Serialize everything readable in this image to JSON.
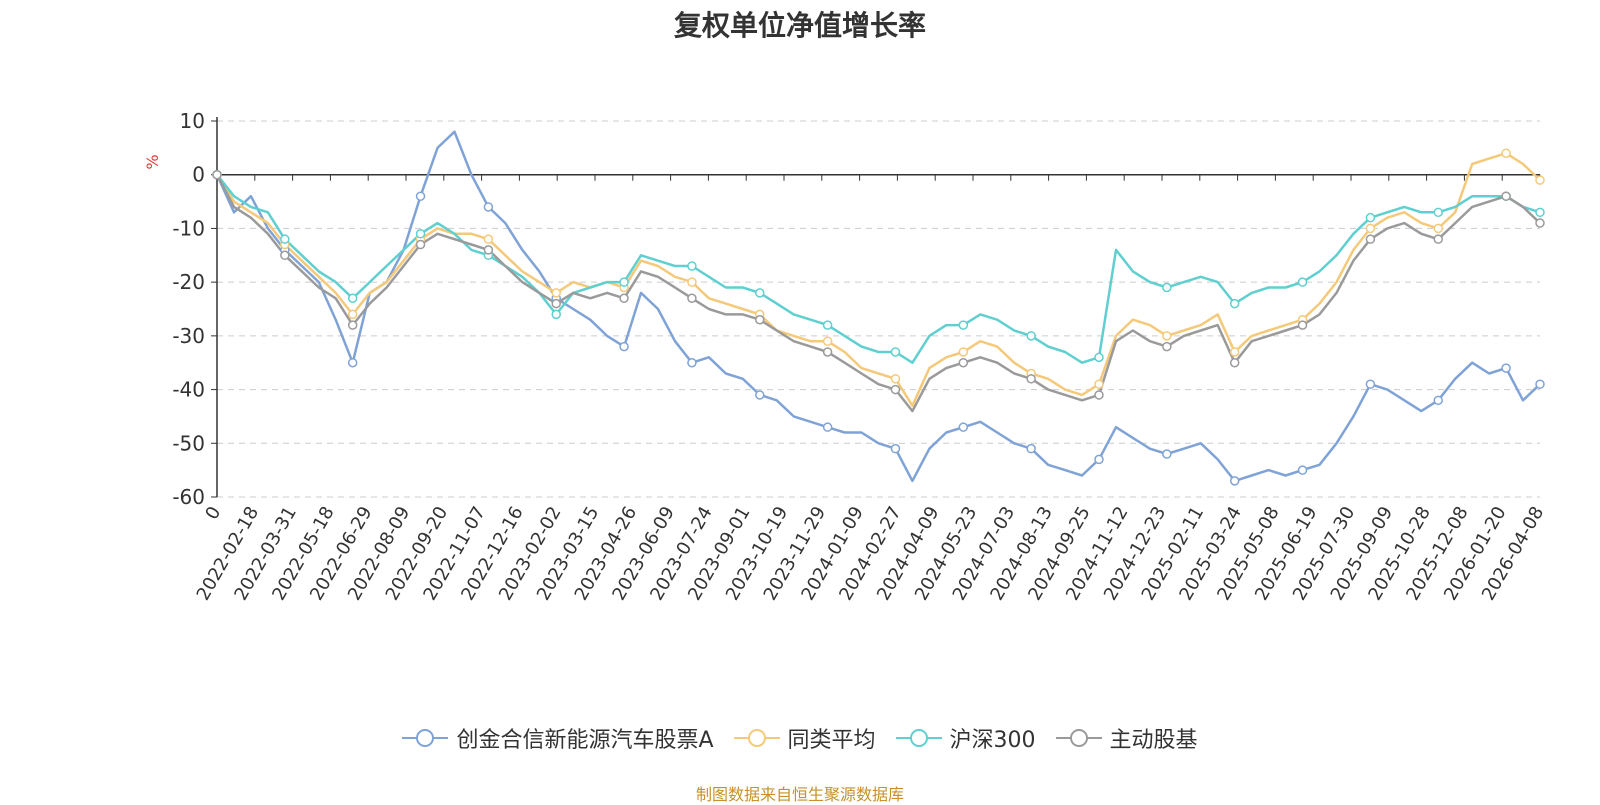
{
  "chart_data": {
    "type": "line",
    "title": "复权单位净值增长率",
    "ylabel": "%",
    "xlabel": "",
    "ylim": [
      -60,
      10
    ],
    "yticks": [
      10,
      0,
      -10,
      -20,
      -30,
      -40,
      -50,
      -60
    ],
    "grid": true,
    "legend_position": "bottom-center",
    "x_labels": [
      "0",
      "2022-02-18",
      "2022-03-31",
      "2022-05-18",
      "2022-06-29",
      "2022-08-09",
      "2022-09-20",
      "2022-11-07",
      "2022-12-16",
      "2023-02-02",
      "2023-03-15",
      "2023-04-26",
      "2023-06-09",
      "2023-07-24",
      "2023-09-01",
      "2023-10-19",
      "2023-11-29",
      "2024-01-09",
      "2024-02-27",
      "2024-04-09",
      "2024-05-23",
      "2024-07-03",
      "2024-08-13",
      "2024-09-25",
      "2024-11-12",
      "2024-12-23",
      "2025-02-11",
      "2025-03-24",
      "2025-05-08",
      "2025-06-19",
      "2025-07-30",
      "2025-09-09",
      "2025-10-28",
      "2025-12-08",
      "2026-01-20",
      "2026-04-08"
    ],
    "series": [
      {
        "name": "创金合信新能源汽车股票A",
        "color": "#7fa3d6",
        "values": [
          0,
          -7,
          -4,
          -10,
          -14,
          -17,
          -20,
          -27,
          -35,
          -22,
          -20,
          -14,
          -4,
          5,
          8,
          0,
          -6,
          -9,
          -14,
          -18,
          -23,
          -25,
          -27,
          -30,
          -32,
          -22,
          -25,
          -31,
          -35,
          -34,
          -37,
          -38,
          -41,
          -42,
          -45,
          -46,
          -47,
          -48,
          -48,
          -50,
          -51,
          -57,
          -51,
          -48,
          -47,
          -46,
          -48,
          -50,
          -51,
          -54,
          -55,
          -56,
          -53,
          -47,
          -49,
          -51,
          -52,
          -51,
          -50,
          -53,
          -57,
          -56,
          -55,
          -56,
          -55,
          -54,
          -50,
          -45,
          -39,
          -40,
          -42,
          -44,
          -42,
          -38,
          -35,
          -37,
          -36,
          -42,
          -39
        ]
      },
      {
        "name": "同类平均",
        "color": "#f5c97a",
        "values": [
          0,
          -5,
          -7,
          -9,
          -13,
          -16,
          -19,
          -22,
          -26,
          -22,
          -20,
          -16,
          -12,
          -10,
          -11,
          -11,
          -12,
          -15,
          -18,
          -20,
          -22,
          -20,
          -21,
          -20,
          -21,
          -16,
          -17,
          -19,
          -20,
          -23,
          -24,
          -25,
          -26,
          -29,
          -30,
          -31,
          -31,
          -33,
          -36,
          -37,
          -38,
          -43,
          -36,
          -34,
          -33,
          -31,
          -32,
          -35,
          -37,
          -38,
          -40,
          -41,
          -39,
          -30,
          -27,
          -28,
          -30,
          -29,
          -28,
          -26,
          -33,
          -30,
          -29,
          -28,
          -27,
          -24,
          -20,
          -14,
          -10,
          -8,
          -7,
          -9,
          -10,
          -7,
          2,
          3,
          4,
          2,
          -1
        ]
      },
      {
        "name": "沪深300",
        "color": "#5fcfcf",
        "values": [
          0,
          -4,
          -6,
          -7,
          -12,
          -15,
          -18,
          -20,
          -23,
          -20,
          -17,
          -14,
          -11,
          -9,
          -11,
          -14,
          -15,
          -17,
          -19,
          -22,
          -26,
          -22,
          -21,
          -20,
          -20,
          -15,
          -16,
          -17,
          -17,
          -19,
          -21,
          -21,
          -22,
          -24,
          -26,
          -27,
          -28,
          -30,
          -32,
          -33,
          -33,
          -35,
          -30,
          -28,
          -28,
          -26,
          -27,
          -29,
          -30,
          -32,
          -33,
          -35,
          -34,
          -14,
          -18,
          -20,
          -21,
          -20,
          -19,
          -20,
          -24,
          -22,
          -21,
          -21,
          -20,
          -18,
          -15,
          -11,
          -8,
          -7,
          -6,
          -7,
          -7,
          -6,
          -4,
          -4,
          -4,
          -6,
          -7
        ]
      },
      {
        "name": "主动股基",
        "color": "#9a9a9a",
        "values": [
          0,
          -6,
          -8,
          -11,
          -15,
          -18,
          -21,
          -23,
          -28,
          -24,
          -21,
          -17,
          -13,
          -11,
          -12,
          -13,
          -14,
          -17,
          -20,
          -22,
          -24,
          -22,
          -23,
          -22,
          -23,
          -18,
          -19,
          -21,
          -23,
          -25,
          -26,
          -26,
          -27,
          -29,
          -31,
          -32,
          -33,
          -35,
          -37,
          -39,
          -40,
          -44,
          -38,
          -36,
          -35,
          -34,
          -35,
          -37,
          -38,
          -40,
          -41,
          -42,
          -41,
          -31,
          -29,
          -31,
          -32,
          -30,
          -29,
          -28,
          -35,
          -31,
          -30,
          -29,
          -28,
          -26,
          -22,
          -16,
          -12,
          -10,
          -9,
          -11,
          -12,
          -9,
          -6,
          -5,
          -4,
          -6,
          -9
        ]
      }
    ]
  },
  "source_text": "制图数据来自恒生聚源数据库"
}
